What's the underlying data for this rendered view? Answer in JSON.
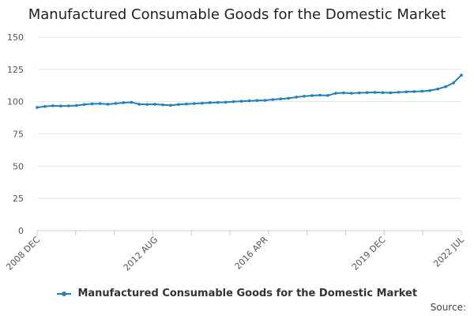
{
  "chart_data": {
    "type": "line",
    "title": "Manufactured Consumable Goods for the Domestic Market",
    "xlabel": "",
    "ylabel": "",
    "ylim": [
      0,
      150
    ],
    "y_ticks": [
      0,
      25,
      50,
      75,
      100,
      125,
      150
    ],
    "x_tick_labels": [
      "2008 DEC",
      "2012 AUG",
      "2016 APR",
      "2019 DEC",
      "2022 JUL"
    ],
    "grid": true,
    "legend_position": "bottom",
    "series": [
      {
        "name": "Manufactured Consumable Goods for the Domestic Market",
        "color": "#1f7fbf",
        "x": [
          "2008 DEC",
          "2009 MAR",
          "2009 JUN",
          "2009 SEP",
          "2009 DEC",
          "2010 MAR",
          "2010 JUN",
          "2010 SEP",
          "2010 DEC",
          "2011 MAR",
          "2011 JUN",
          "2011 SEP",
          "2011 DEC",
          "2012 MAR",
          "2012 JUN",
          "2012 AUG",
          "2012 DEC",
          "2013 MAR",
          "2013 JUN",
          "2013 SEP",
          "2013 DEC",
          "2014 MAR",
          "2014 JUN",
          "2014 SEP",
          "2014 DEC",
          "2015 MAR",
          "2015 JUN",
          "2015 SEP",
          "2015 DEC",
          "2016 APR",
          "2016 JUN",
          "2016 SEP",
          "2016 DEC",
          "2017 MAR",
          "2017 JUN",
          "2017 SEP",
          "2017 DEC",
          "2018 MAR",
          "2018 JUN",
          "2018 SEP",
          "2018 DEC",
          "2019 MAR",
          "2019 JUN",
          "2019 SEP",
          "2019 DEC",
          "2020 MAR",
          "2020 JUN",
          "2020 SEP",
          "2020 DEC",
          "2021 MAR",
          "2021 JUN",
          "2021 SEP",
          "2021 DEC",
          "2022 MAR",
          "2022 JUL"
        ],
        "values": [
          95.5,
          96.3,
          96.8,
          96.6,
          96.7,
          97.0,
          97.8,
          98.3,
          98.5,
          98.0,
          98.6,
          99.2,
          99.5,
          98.0,
          97.8,
          98.0,
          97.5,
          97.2,
          97.8,
          98.2,
          98.5,
          98.8,
          99.2,
          99.4,
          99.6,
          100.0,
          100.3,
          100.6,
          100.9,
          101.0,
          101.6,
          102.1,
          102.6,
          103.5,
          104.2,
          104.7,
          105.0,
          104.8,
          106.5,
          106.8,
          106.5,
          106.8,
          107.0,
          107.2,
          107.0,
          106.9,
          107.3,
          107.6,
          107.8,
          108.1,
          108.6,
          109.8,
          111.6,
          114.5,
          120.5
        ]
      }
    ]
  },
  "legend": {
    "label": "Manufactured Consumable Goods for the Domestic Market"
  },
  "footer": {
    "source_label": "Source:"
  }
}
